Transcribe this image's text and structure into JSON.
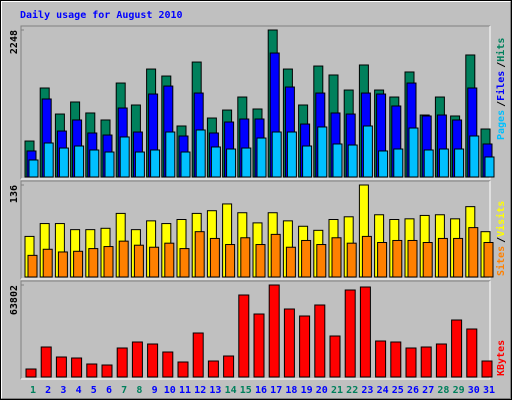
{
  "chart_data": [
    {
      "type": "bar",
      "title": "Daily usage for August 2010",
      "ylim": [
        0,
        2248
      ],
      "yticks": [
        2248
      ],
      "grid": false,
      "separator": "/",
      "series": [
        {
          "name": "Hits",
          "color": "#00805c",
          "values": [
            550,
            1361,
            963,
            1147,
            979,
            872,
            1437,
            1101,
            1651,
            1544,
            780,
            1758,
            902,
            1024,
            1223,
            1040,
            2248,
            1651,
            1101,
            1697,
            1560,
            1330,
            1713,
            1330,
            1223,
            1606,
            948,
            1223,
            933,
            1866,
            734
          ]
        },
        {
          "name": "Files",
          "color": "#0000ff",
          "values": [
            398,
            1193,
            703,
            872,
            673,
            642,
            1055,
            688,
            1269,
            1391,
            627,
            1284,
            673,
            841,
            887,
            887,
            1896,
            1376,
            810,
            1284,
            979,
            963,
            1284,
            1269,
            1086,
            1437,
            933,
            948,
            872,
            1361,
            505
          ]
        },
        {
          "name": "Pages",
          "color": "#00c0ff",
          "values": [
            260,
            520,
            443,
            474,
            413,
            382,
            612,
            382,
            413,
            688,
            382,
            719,
            459,
            428,
            443,
            596,
            688,
            688,
            474,
            765,
            505,
            489,
            780,
            398,
            428,
            749,
            413,
            428,
            428,
            627,
            306
          ]
        }
      ]
    },
    {
      "type": "bar",
      "ylim": [
        0,
        136
      ],
      "yticks": [
        136
      ],
      "grid": false,
      "separator": "/",
      "series": [
        {
          "name": "Visits",
          "color": "#ffff00",
          "values": [
            60,
            79,
            79,
            70,
            70,
            72,
            94,
            70,
            83,
            79,
            85,
            94,
            98,
            108,
            95,
            80,
            95,
            83,
            75,
            69,
            85,
            89,
            136,
            92,
            85,
            86,
            91,
            92,
            86,
            104,
            67
          ]
        },
        {
          "name": "Sites",
          "color": "#ff8000",
          "values": [
            32,
            41,
            37,
            38,
            42,
            45,
            53,
            47,
            44,
            50,
            42,
            67,
            57,
            48,
            58,
            48,
            63,
            44,
            54,
            48,
            58,
            50,
            60,
            51,
            54,
            54,
            51,
            57,
            57,
            73,
            51
          ]
        }
      ]
    },
    {
      "type": "bar",
      "ylim": [
        0,
        63802
      ],
      "yticks": [
        63802
      ],
      "grid": false,
      "categories": [
        "1",
        "2",
        "3",
        "4",
        "5",
        "6",
        "7",
        "8",
        "9",
        "10",
        "11",
        "12",
        "13",
        "14",
        "15",
        "16",
        "17",
        "18",
        "19",
        "20",
        "21",
        "22",
        "23",
        "24",
        "25",
        "26",
        "27",
        "28",
        "29",
        "30",
        "31"
      ],
      "category_colors": [
        "#00805c",
        "#0000ff",
        "#0000ff",
        "#0000ff",
        "#0000ff",
        "#0000ff",
        "#00805c",
        "#00805c",
        "#0000ff",
        "#0000ff",
        "#0000ff",
        "#0000ff",
        "#0000ff",
        "#00805c",
        "#00805c",
        "#0000ff",
        "#0000ff",
        "#0000ff",
        "#0000ff",
        "#0000ff",
        "#00805c",
        "#00805c",
        "#0000ff",
        "#0000ff",
        "#0000ff",
        "#0000ff",
        "#0000ff",
        "#00805c",
        "#00805c",
        "#0000ff",
        "#0000ff"
      ],
      "series": [
        {
          "name": "KBytes",
          "color": "#ff0000",
          "values": [
            5548,
            20805,
            13870,
            13177,
            9016,
            8322,
            20112,
            24273,
            22886,
            17338,
            10403,
            30514,
            11096,
            14564,
            56867,
            43690,
            63802,
            47158,
            42304,
            49932,
            28434,
            60334,
            62415,
            24966,
            24273,
            20112,
            20805,
            22886,
            39530,
            33288,
            11096
          ]
        }
      ]
    }
  ]
}
